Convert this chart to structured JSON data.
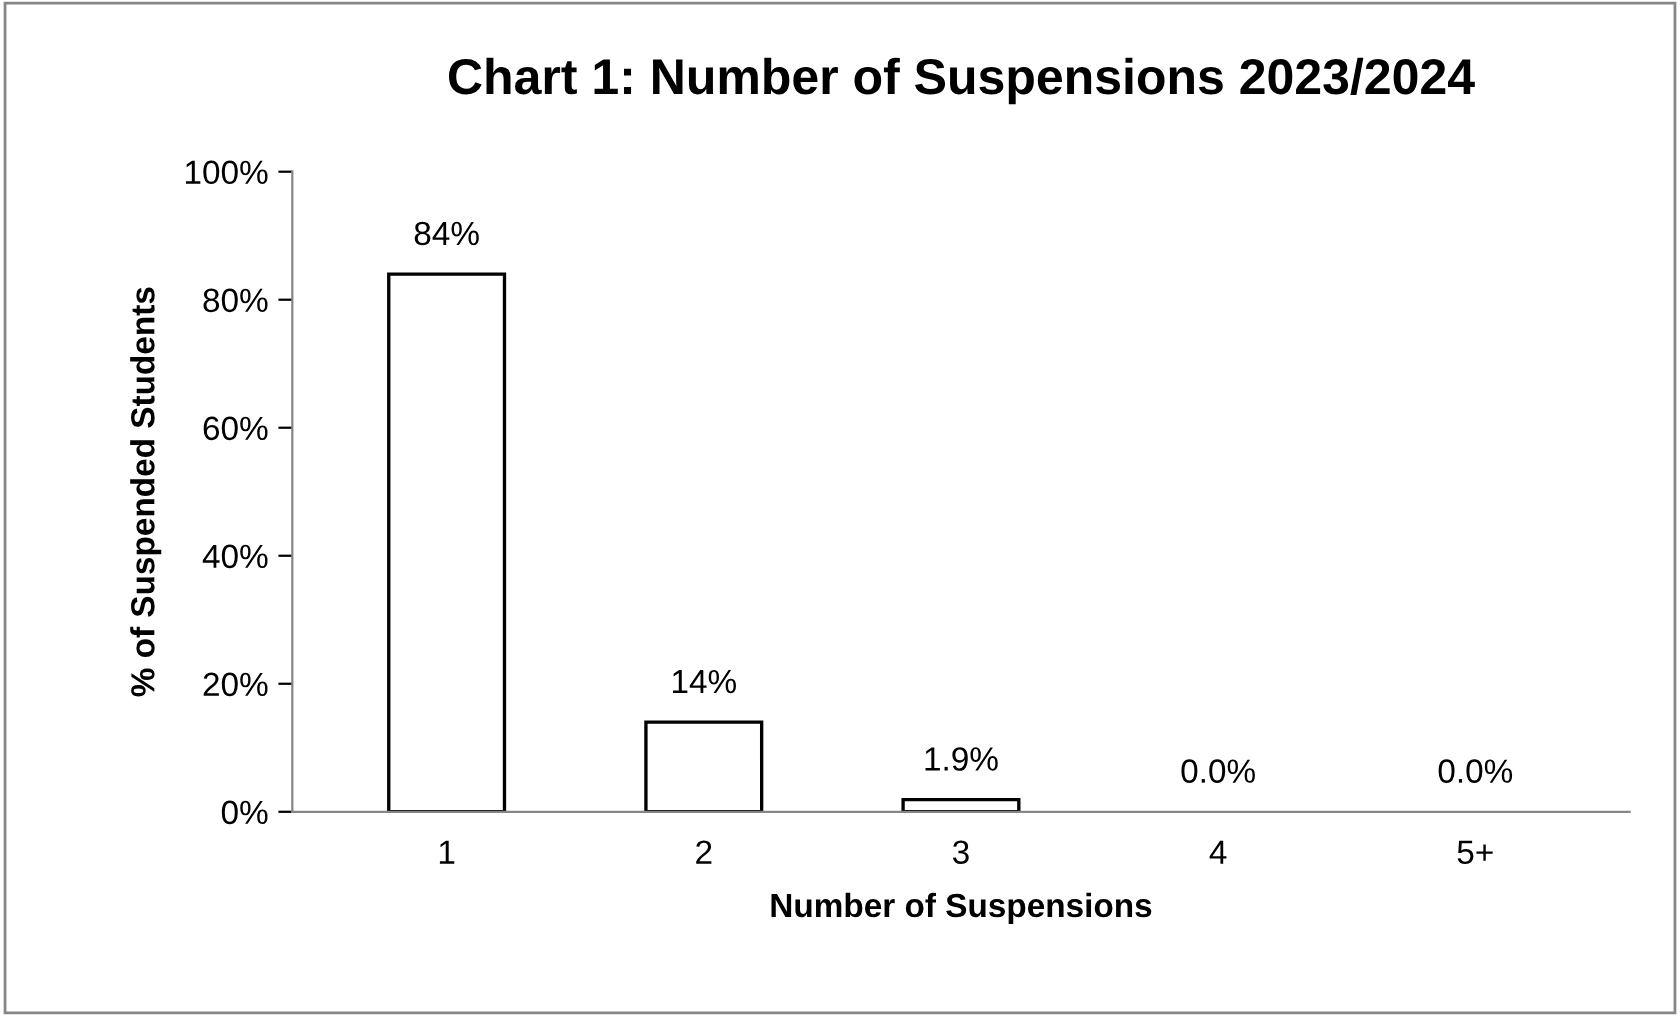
{
  "chart_data": {
    "type": "bar",
    "title": "Chart 1: Number of Suspensions 2023/2024",
    "xlabel": "Number of Suspensions",
    "ylabel": "% of Suspended Students",
    "categories": [
      "1",
      "2",
      "3",
      "4",
      "5+"
    ],
    "values": [
      84,
      14,
      1.9,
      0.0,
      0.0
    ],
    "value_labels": [
      "84%",
      "14%",
      "1.9%",
      "0.0%",
      "0.0%"
    ],
    "color": "#ffffff",
    "ylim": [
      0,
      100
    ],
    "yticks": [
      {
        "value": 0,
        "label": "0%"
      },
      {
        "value": 20,
        "label": "20%"
      },
      {
        "value": 40,
        "label": "40%"
      },
      {
        "value": 60,
        "label": "60%"
      },
      {
        "value": 80,
        "label": "80%"
      },
      {
        "value": 100,
        "label": "100%"
      }
    ],
    "grid": false,
    "legend": false
  }
}
